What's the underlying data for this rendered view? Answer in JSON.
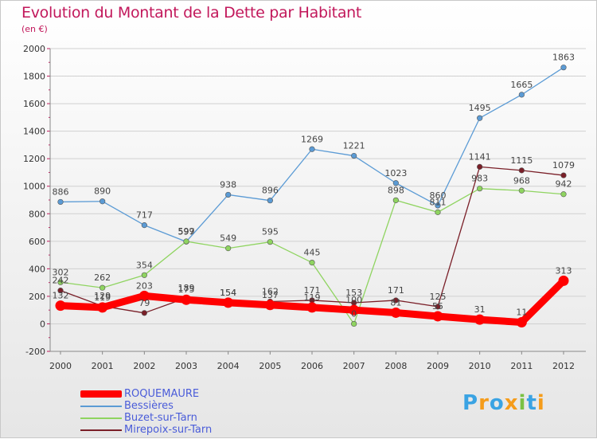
{
  "title": "Evolution du Montant de la Dette par Habitant",
  "subtitle": "(en €)",
  "logo": {
    "letters": [
      "P",
      "r",
      "o",
      "x",
      "i",
      "t",
      "i"
    ],
    "colors": [
      "#3aa3e3",
      "#f59c1a",
      "#3aa3e3",
      "#f59c1a",
      "#7ac143",
      "#3aa3e3",
      "#f59c1a"
    ]
  },
  "chart_data": {
    "type": "line",
    "title": "Evolution du Montant de la Dette par Habitant",
    "ylabel": "(en €)",
    "x": [
      "2000",
      "2001",
      "2002",
      "2003",
      "2004",
      "2005",
      "2006",
      "2007",
      "2008",
      "2009",
      "2010",
      "2011",
      "2012"
    ],
    "ylim": [
      -200,
      2000
    ],
    "yticks": [
      -200,
      0,
      200,
      400,
      600,
      800,
      1000,
      1200,
      1400,
      1600,
      1800,
      2000
    ],
    "grid": true,
    "legend": "bottom-left",
    "series": [
      {
        "name": "ROQUEMAURE",
        "color": "#ff0000",
        "values": [
          132,
          119,
          203,
          175,
          154,
          137,
          119,
          100,
          81,
          55,
          31,
          11,
          313
        ],
        "labels": [
          "132",
          "119",
          "203",
          "175",
          "154",
          "137",
          "119",
          "100",
          "81",
          "55",
          "31",
          "11",
          "313"
        ]
      },
      {
        "name": "Bessières",
        "color": "#5b9bd5",
        "values": [
          886,
          890,
          717,
          597,
          938,
          896,
          1269,
          1221,
          1023,
          860,
          1495,
          1665,
          1863
        ],
        "labels": [
          "886",
          "890",
          "717",
          "597",
          "938",
          "896",
          "1269",
          "1221",
          "1023",
          "860",
          "1495",
          "1665",
          "1863"
        ]
      },
      {
        "name": "Buzet-sur-Tarn",
        "color": "#8fd460",
        "values": [
          302,
          262,
          354,
          599,
          549,
          595,
          445,
          0,
          898,
          811,
          983,
          968,
          942
        ],
        "labels": [
          "302",
          "262",
          "354",
          "599",
          "549",
          "595",
          "445",
          "0",
          "898",
          "811",
          "983",
          "968",
          "942"
        ]
      },
      {
        "name": "Mirepoix-sur-Tarn",
        "color": "#7a1f28",
        "values": [
          242,
          129,
          79,
          189,
          154,
          162,
          171,
          153,
          171,
          125,
          1141,
          1115,
          1079
        ],
        "labels": [
          "242",
          "129",
          "79",
          "189",
          "154",
          "162",
          "171",
          "153",
          "171",
          "125",
          "1141",
          "1115",
          "1079"
        ]
      }
    ]
  }
}
